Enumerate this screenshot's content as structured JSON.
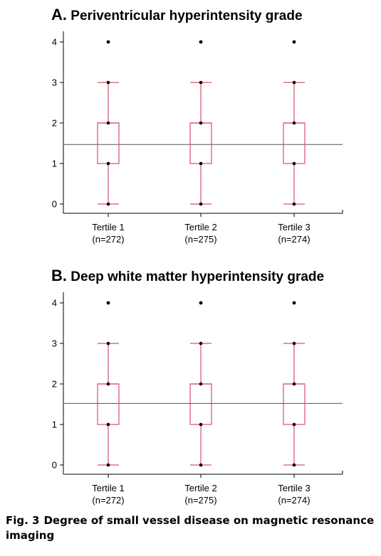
{
  "figure": {
    "caption_label": "Fig. 3",
    "caption_text": "Degree of small vessel disease on magnetic resonance imaging"
  },
  "chart_data": [
    {
      "type": "box",
      "panel_letter": "A.",
      "title": "Periventricular hyperintensity grade",
      "yticks": [
        0,
        1,
        2,
        3,
        4
      ],
      "ylim": [
        0,
        4
      ],
      "categories": [
        "Tertile 1",
        "Tertile 2",
        "Tertile 3"
      ],
      "category_sublabels": [
        "(n=272)",
        "(n=275)",
        "(n=274)"
      ],
      "boxes": [
        {
          "whisker_low": 0,
          "q1": 1,
          "median": 2,
          "q3": 2,
          "whisker_high": 3,
          "points": [
            0,
            1,
            2,
            3
          ],
          "outliers": [
            4
          ]
        },
        {
          "whisker_low": 0,
          "q1": 1,
          "median": 2,
          "q3": 2,
          "whisker_high": 3,
          "points": [
            0,
            1,
            2,
            3
          ],
          "outliers": [
            4
          ]
        },
        {
          "whisker_low": 0,
          "q1": 1,
          "median": 2,
          "q3": 2,
          "whisker_high": 3,
          "points": [
            0,
            1,
            2,
            3
          ],
          "outliers": [
            4
          ]
        }
      ],
      "reference_line": 1.47,
      "colors": {
        "box": "#d9506a",
        "reference": "#555555",
        "point": "#000000"
      }
    },
    {
      "type": "box",
      "panel_letter": "B.",
      "title": "Deep white matter hyperintensity grade",
      "yticks": [
        0,
        1,
        2,
        3,
        4
      ],
      "ylim": [
        0,
        4
      ],
      "categories": [
        "Tertile 1",
        "Tertile 2",
        "Tertile 3"
      ],
      "category_sublabels": [
        "(n=272)",
        "(n=275)",
        "(n=274)"
      ],
      "boxes": [
        {
          "whisker_low": 0,
          "q1": 1,
          "median": 2,
          "q3": 2,
          "whisker_high": 3,
          "points": [
            0,
            1,
            2,
            3
          ],
          "outliers": [
            4
          ]
        },
        {
          "whisker_low": 0,
          "q1": 1,
          "median": 2,
          "q3": 2,
          "whisker_high": 3,
          "points": [
            0,
            1,
            2,
            3
          ],
          "outliers": [
            4
          ]
        },
        {
          "whisker_low": 0,
          "q1": 1,
          "median": 2,
          "q3": 2,
          "whisker_high": 3,
          "points": [
            0,
            1,
            2,
            3
          ],
          "outliers": [
            4
          ]
        }
      ],
      "reference_line": 1.52,
      "colors": {
        "box": "#d9506a",
        "reference": "#555555",
        "point": "#000000"
      }
    }
  ]
}
